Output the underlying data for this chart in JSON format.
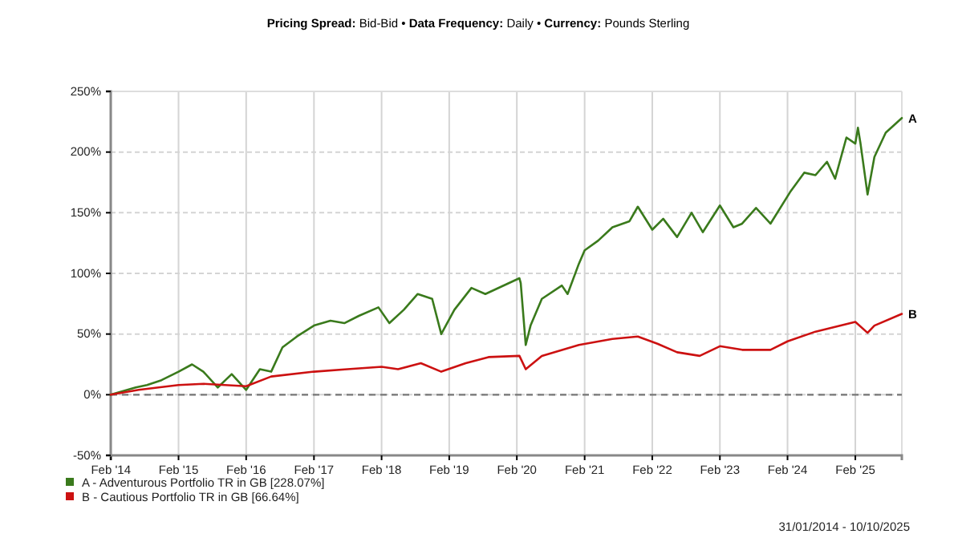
{
  "chart_data": {
    "type": "line",
    "title": "Pricing Spread: Bid-Bid • Data Frequency: Daily • Currency: Pounds Sterling",
    "xlim": [
      "2014-01-31",
      "2025-10-10"
    ],
    "xticks": [
      {
        "value": "2014-02-01",
        "label": "Feb '14"
      },
      {
        "value": "2015-02-01",
        "label": "Feb '15"
      },
      {
        "value": "2016-02-01",
        "label": "Feb '16"
      },
      {
        "value": "2017-02-01",
        "label": "Feb '17"
      },
      {
        "value": "2018-02-01",
        "label": "Feb '18"
      },
      {
        "value": "2019-02-01",
        "label": "Feb '19"
      },
      {
        "value": "2020-02-01",
        "label": "Feb '20"
      },
      {
        "value": "2021-02-01",
        "label": "Feb '21"
      },
      {
        "value": "2022-02-01",
        "label": "Feb '22"
      },
      {
        "value": "2023-02-01",
        "label": "Feb '23"
      },
      {
        "value": "2024-02-01",
        "label": "Feb '24"
      },
      {
        "value": "2025-02-01",
        "label": "Feb '25"
      }
    ],
    "ylim": [
      -50,
      250
    ],
    "yticks": [
      {
        "value": -50,
        "label": "-50%"
      },
      {
        "value": 0,
        "label": "0%"
      },
      {
        "value": 50,
        "label": "50%"
      },
      {
        "value": 100,
        "label": "100%"
      },
      {
        "value": 150,
        "label": "150%"
      },
      {
        "value": 200,
        "label": "200%"
      },
      {
        "value": 250,
        "label": "250%"
      }
    ],
    "grid": true,
    "legend": "bottom left",
    "line_style": "solid",
    "marker": "none",
    "ref_lines": [
      {
        "axis": "y",
        "value": 0,
        "color": "#777777",
        "line_style": "dashed"
      }
    ],
    "series": [
      {
        "name": "A - Adventurous Portfolio TR in GB [228.07%]",
        "color": "#3a7a1c",
        "x": [
          "2014-01-31",
          "2014-06-15",
          "2014-08-15",
          "2014-11-01",
          "2015-02-01",
          "2015-04-15",
          "2015-06-15",
          "2015-09-01",
          "2015-11-15",
          "2016-02-01",
          "2016-04-15",
          "2016-06-15",
          "2016-08-15",
          "2016-11-01",
          "2017-02-01",
          "2017-05-01",
          "2017-07-15",
          "2017-10-01",
          "2018-01-15",
          "2018-03-15",
          "2018-06-01",
          "2018-08-15",
          "2018-11-01",
          "2018-12-20",
          "2019-03-01",
          "2019-06-01",
          "2019-08-15",
          "2020-02-15",
          "2020-02-22",
          "2020-03-20",
          "2020-04-15",
          "2020-06-15",
          "2020-10-01",
          "2020-11-01",
          "2021-01-01",
          "2021-02-01",
          "2021-04-15",
          "2021-07-01",
          "2021-10-01",
          "2021-11-15",
          "2022-02-01",
          "2022-04-01",
          "2022-06-15",
          "2022-09-01",
          "2022-11-01",
          "2023-02-01",
          "2023-04-15",
          "2023-06-01",
          "2023-08-15",
          "2023-11-01",
          "2024-02-15",
          "2024-05-01",
          "2024-07-01",
          "2024-09-01",
          "2024-10-15",
          "2024-12-15",
          "2025-02-01",
          "2025-02-15",
          "2025-03-01",
          "2025-04-08",
          "2025-05-15",
          "2025-07-15",
          "2025-10-10"
        ],
        "values": [
          0,
          6,
          8,
          12,
          19,
          25,
          19,
          6,
          17,
          4,
          21,
          19,
          39,
          48,
          57,
          61,
          59,
          65,
          72,
          59,
          70,
          83,
          79,
          50,
          70,
          88,
          83,
          96,
          92,
          41,
          57,
          79,
          90,
          83,
          108,
          119,
          127,
          138,
          143,
          155,
          136,
          145,
          130,
          150,
          134,
          156,
          138,
          141,
          154,
          141,
          167,
          183,
          181,
          192,
          178,
          212,
          207,
          220,
          207,
          165,
          196,
          216,
          228.07
        ]
      },
      {
        "name": "B - Cautious Portfolio TR in GB [66.64%]",
        "color": "#cc1111",
        "x": [
          "2014-01-31",
          "2014-07-01",
          "2015-02-01",
          "2015-06-15",
          "2016-02-01",
          "2016-06-15",
          "2017-02-01",
          "2017-08-01",
          "2018-02-01",
          "2018-05-01",
          "2018-09-01",
          "2018-12-20",
          "2019-05-01",
          "2019-09-01",
          "2020-02-15",
          "2020-03-20",
          "2020-06-15",
          "2021-01-01",
          "2021-07-01",
          "2021-11-15",
          "2022-03-01",
          "2022-06-15",
          "2022-10-15",
          "2023-02-01",
          "2023-06-01",
          "2023-11-01",
          "2024-02-01",
          "2024-07-01",
          "2025-02-01",
          "2025-04-08",
          "2025-05-15",
          "2025-10-10"
        ],
        "values": [
          0,
          4,
          8,
          9,
          7,
          15,
          19,
          21,
          23,
          21,
          26,
          19,
          26,
          31,
          32,
          21,
          32,
          41,
          46,
          48,
          42,
          35,
          32,
          40,
          37,
          37,
          44,
          52,
          60,
          51,
          57,
          66.64
        ]
      }
    ],
    "annotations": [
      {
        "text": "A",
        "x": "2025-10-10",
        "y": 228.07
      },
      {
        "text": "B",
        "x": "2025-10-10",
        "y": 66.64
      },
      "31/01/2014 - 10/10/2025"
    ]
  }
}
